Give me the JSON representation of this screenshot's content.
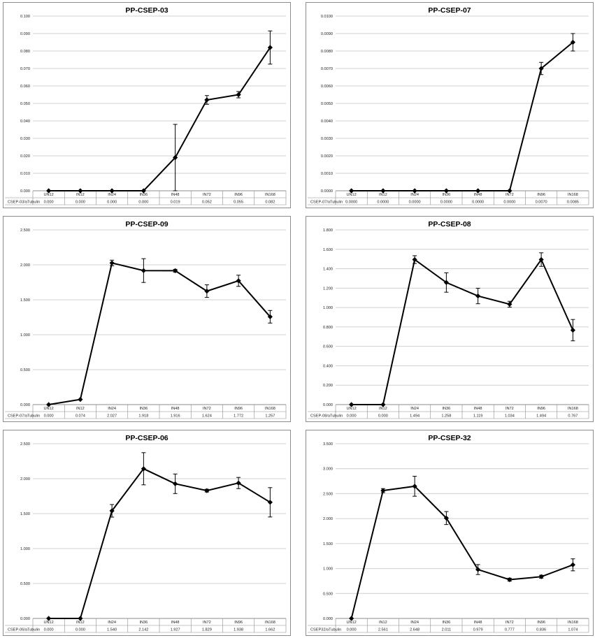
{
  "chart_data": [
    {
      "type": "line",
      "title": "PP-CSEP-03",
      "categories": [
        "UN12",
        "IN12",
        "IN24",
        "IN36",
        "IN48",
        "IN72",
        "IN96",
        "IN168"
      ],
      "series": [
        {
          "name": "CSEP-03/aTubulin",
          "values": [
            0.0,
            0.0,
            0.0,
            0.0,
            0.019,
            0.052,
            0.055,
            0.082
          ],
          "value_labels": [
            "0.000",
            "0.000",
            "0.000",
            "0.000",
            "0.019",
            "0.052",
            "0.055",
            "0.082"
          ],
          "errors": [
            0,
            0,
            0,
            0,
            0.019,
            0.0025,
            0.0018,
            0.0095
          ]
        }
      ],
      "ylim": [
        0,
        0.1
      ],
      "yticks": [
        "0.000",
        "0.010",
        "0.020",
        "0.030",
        "0.040",
        "0.050",
        "0.060",
        "0.070",
        "0.080",
        "0.090",
        "0.100"
      ],
      "grid": true,
      "data_table": true
    },
    {
      "type": "line",
      "title": "PP-CSEP-07",
      "categories": [
        "UN12",
        "IN12",
        "IN24",
        "IN36",
        "IN48",
        "IN72",
        "IN96",
        "IN168"
      ],
      "series": [
        {
          "name": "CSEP-07/aTubulin",
          "values": [
            0.0,
            0.0,
            0.0,
            0.0,
            0.0,
            0.0,
            0.007,
            0.0085
          ],
          "value_labels": [
            "0.0000",
            "0.0000",
            "0.0000",
            "0.0000",
            "0.0000",
            "0.0000",
            "0.0070",
            "0.0085"
          ],
          "errors": [
            0,
            0,
            0,
            0,
            0,
            0,
            0.00035,
            0.0005
          ]
        }
      ],
      "ylim": [
        0,
        0.01
      ],
      "yticks": [
        "0.0000",
        "0.0010",
        "0.0020",
        "0.0030",
        "0.0040",
        "0.0050",
        "0.0060",
        "0.0070",
        "0.0080",
        "0.0090",
        "0.0100"
      ],
      "grid": true,
      "data_table": true
    },
    {
      "type": "line",
      "title": "PP-CSEP-09",
      "categories": [
        "UN12",
        "IN12",
        "IN24",
        "IN36",
        "IN48",
        "IN72",
        "IN96",
        "IN168"
      ],
      "series": [
        {
          "name": "CSEP-07/aTubulin",
          "values": [
            0.0,
            0.074,
            2.027,
            1.918,
            1.916,
            1.624,
            1.772,
            1.257
          ],
          "value_labels": [
            "0.000",
            "0.074",
            "2.027",
            "1.918",
            "1.916",
            "1.624",
            "1.772",
            "1.257"
          ],
          "errors": [
            0,
            0,
            0.04,
            0.17,
            0.02,
            0.09,
            0.08,
            0.09
          ]
        }
      ],
      "ylim": [
        0,
        2.5
      ],
      "yticks": [
        "0.000",
        "0.500",
        "1.000",
        "1.500",
        "2.000",
        "2.500"
      ],
      "grid": true,
      "data_table": true
    },
    {
      "type": "line",
      "title": "PP-CSEP-08",
      "categories": [
        "UN12",
        "IN12",
        "IN24",
        "IN36",
        "IN48",
        "IN72",
        "IN96",
        "IN168"
      ],
      "series": [
        {
          "name": "CSEP-08/aTubulin",
          "values": [
            0.0,
            0.0,
            1.494,
            1.258,
            1.119,
            1.034,
            1.494,
            0.767
          ],
          "value_labels": [
            "0.000",
            "0.000",
            "1.494",
            "1.258",
            "1.119",
            "1.034",
            "1.494",
            "0.767"
          ],
          "errors": [
            0,
            0,
            0.04,
            0.1,
            0.08,
            0.03,
            0.07,
            0.11
          ]
        }
      ],
      "ylim": [
        0,
        1.8
      ],
      "yticks": [
        "0.000",
        "0.200",
        "0.400",
        "0.600",
        "0.800",
        "1.000",
        "1.200",
        "1.400",
        "1.600",
        "1.800"
      ],
      "grid": true,
      "data_table": true
    },
    {
      "type": "line",
      "title": "PP-CSEP-06",
      "categories": [
        "UN12",
        "IN12",
        "IN24",
        "IN36",
        "IN48",
        "IN72",
        "IN96",
        "IN168"
      ],
      "series": [
        {
          "name": "CSEP-06/aTubulin",
          "values": [
            0.0,
            0.0,
            1.54,
            2.142,
            1.927,
            1.829,
            1.938,
            1.662
          ],
          "value_labels": [
            "0.000",
            "0.000",
            "1.540",
            "2.142",
            "1.927",
            "1.829",
            "1.938",
            "1.662"
          ],
          "errors": [
            0,
            0,
            0.09,
            0.23,
            0.14,
            0.02,
            0.08,
            0.21
          ]
        }
      ],
      "ylim": [
        0,
        2.5
      ],
      "yticks": [
        "0.000",
        "0.500",
        "1.000",
        "1.500",
        "2.000",
        "2.500"
      ],
      "grid": true,
      "data_table": true
    },
    {
      "type": "line",
      "title": "PP-CSEP-32",
      "categories": [
        "UN12",
        "IN12",
        "IN24",
        "IN36",
        "IN48",
        "IN72",
        "IN96",
        "IN168"
      ],
      "series": [
        {
          "name": "CSEP32/aTubulin",
          "values": [
            0.0,
            2.561,
            2.648,
            2.011,
            0.979,
            0.777,
            0.836,
            1.074
          ],
          "value_labels": [
            "0.000",
            "2.561",
            "2.648",
            "2.011",
            "0.979",
            "0.777",
            "0.836",
            "1.074"
          ],
          "errors": [
            0,
            0.04,
            0.2,
            0.13,
            0.1,
            0.03,
            0.03,
            0.12
          ]
        }
      ],
      "ylim": [
        0,
        3.5
      ],
      "yticks": [
        "0.000",
        "0.500",
        "1.000",
        "1.500",
        "2.000",
        "2.500",
        "3.000",
        "3.500"
      ],
      "grid": true,
      "data_table": true
    }
  ]
}
